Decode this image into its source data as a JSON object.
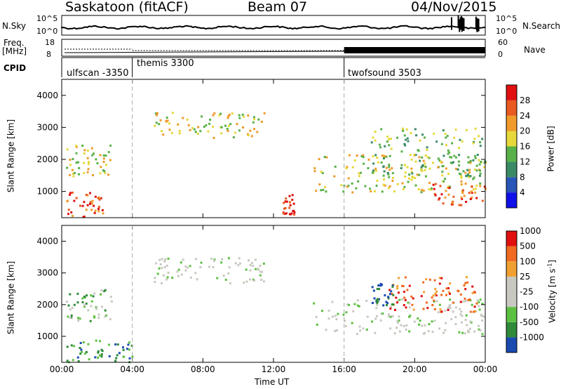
{
  "header": {
    "station": "Saskatoon (fitACF)",
    "beam": "Beam 07",
    "date": "04/Nov/2015"
  },
  "top_panels": {
    "nsky_label": "N.Sky",
    "nsearch_label": "N.Search",
    "nsky_ticks": [
      "10^5",
      "10^0"
    ],
    "nsearch_ticks": [
      "10^5",
      "10^0"
    ],
    "freq_label_1": "Freq.",
    "freq_label_2": "[MHz]",
    "freq_ticks": [
      "18",
      "8"
    ],
    "nave_label": "Nave",
    "nave_ticks": [
      "60",
      "0"
    ],
    "cpid_label": "CPID",
    "cpid_blocks": [
      {
        "name": "ulfscan -3350",
        "start_hour": 0,
        "end_hour": 4
      },
      {
        "name": "themis 3300",
        "start_hour": 4,
        "end_hour": 16
      },
      {
        "name": "twofsound 3503",
        "start_hour": 16,
        "end_hour": 24
      }
    ]
  },
  "chart_data": [
    {
      "type": "heatmap",
      "panel": "power",
      "ylabel": "Slant Range [km]",
      "xlabel": "",
      "xlim": [
        0,
        24
      ],
      "ylim": [
        180,
        4500
      ],
      "yticks": [
        1000,
        2000,
        3000,
        4000
      ],
      "colorbar": {
        "label": "Power [dB]",
        "ticks": [
          4,
          8,
          12,
          16,
          20,
          24,
          28
        ],
        "colors": [
          "#1010e8",
          "#2a55b8",
          "#3a8a66",
          "#58b048",
          "#e6d83a",
          "#f09a2a",
          "#e85a20",
          "#e01010"
        ]
      },
      "regions": [
        {
          "t0": 0.2,
          "t1": 2.5,
          "r0": 200,
          "r1": 1000,
          "level": 6
        },
        {
          "t0": 0.2,
          "t1": 2.8,
          "r0": 1500,
          "r1": 2500,
          "level": 4
        },
        {
          "t0": 5.2,
          "t1": 11.5,
          "r0": 2700,
          "r1": 3500,
          "level": 4
        },
        {
          "t0": 12.5,
          "t1": 13.2,
          "r0": 300,
          "r1": 1000,
          "level": 7
        },
        {
          "t0": 14.2,
          "t1": 24,
          "r0": 1000,
          "r1": 2200,
          "level": 4
        },
        {
          "t0": 17.5,
          "t1": 24,
          "r0": 1400,
          "r1": 3000,
          "level": 3
        },
        {
          "t0": 21,
          "t1": 24,
          "r0": 600,
          "r1": 1300,
          "level": 6
        }
      ]
    },
    {
      "type": "heatmap",
      "panel": "velocity",
      "ylabel": "Slant Range [km]",
      "xlabel": "Time UT",
      "xlim": [
        0,
        24
      ],
      "ylim": [
        180,
        4500
      ],
      "yticks": [
        1000,
        2000,
        3000,
        4000
      ],
      "xticks": [
        "00:00",
        "04:00",
        "08:00",
        "12:00",
        "16:00",
        "20:00",
        "00:00"
      ],
      "colorbar": {
        "label": "Velocity [m s^-1]",
        "ticks": [
          "1000",
          "500",
          "100",
          "25",
          "-25",
          "-100",
          "-500",
          "-1000"
        ],
        "colors": [
          "#1a4ab0",
          "#2f8a3a",
          "#5cc040",
          "#c8c8c0",
          "#c8c8c0",
          "#f0a030",
          "#f06a20",
          "#e01010"
        ]
      },
      "regions": [
        {
          "t0": 0.2,
          "t1": 4.0,
          "r0": 200,
          "r1": 900,
          "level": 1
        },
        {
          "t0": 0.2,
          "t1": 2.8,
          "r0": 1500,
          "r1": 2500,
          "level": 2
        },
        {
          "t0": 5.2,
          "t1": 11.5,
          "r0": 2700,
          "r1": 3500,
          "level": 3
        },
        {
          "t0": 14.2,
          "t1": 24,
          "r0": 1100,
          "r1": 2200,
          "level": 3
        },
        {
          "t0": 18.5,
          "t1": 23.5,
          "r0": 1800,
          "r1": 2900,
          "level": 6
        },
        {
          "t0": 17.5,
          "t1": 18.8,
          "r0": 2000,
          "r1": 2700,
          "level": 0
        }
      ]
    }
  ]
}
